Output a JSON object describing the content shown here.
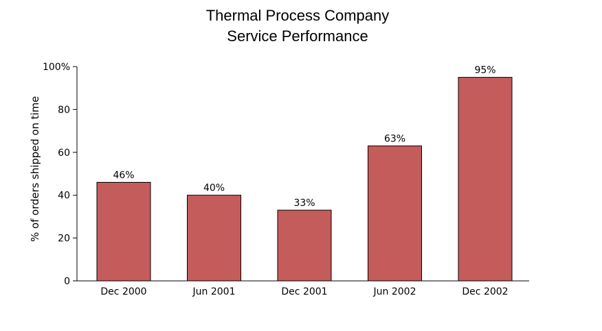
{
  "chart_data": {
    "type": "bar",
    "title": "Thermal Process Company",
    "subtitle": "Service Performance",
    "xlabel": "",
    "ylabel": "% of orders shipped on time",
    "categories": [
      "Dec 2000",
      "Jun 2001",
      "Dec 2001",
      "Jun 2002",
      "Dec 2002"
    ],
    "values": [
      46,
      40,
      33,
      63,
      95
    ],
    "data_labels": [
      "46%",
      "40%",
      "33%",
      "63%",
      "95%"
    ],
    "ylim": [
      0,
      100
    ],
    "yticks": [
      0,
      20,
      40,
      60,
      80,
      100
    ],
    "ytick_labels": [
      "0",
      "20",
      "40",
      "60",
      "80",
      "100%"
    ],
    "grid": false,
    "legend": "none",
    "bar_color": "#c45c5c"
  }
}
